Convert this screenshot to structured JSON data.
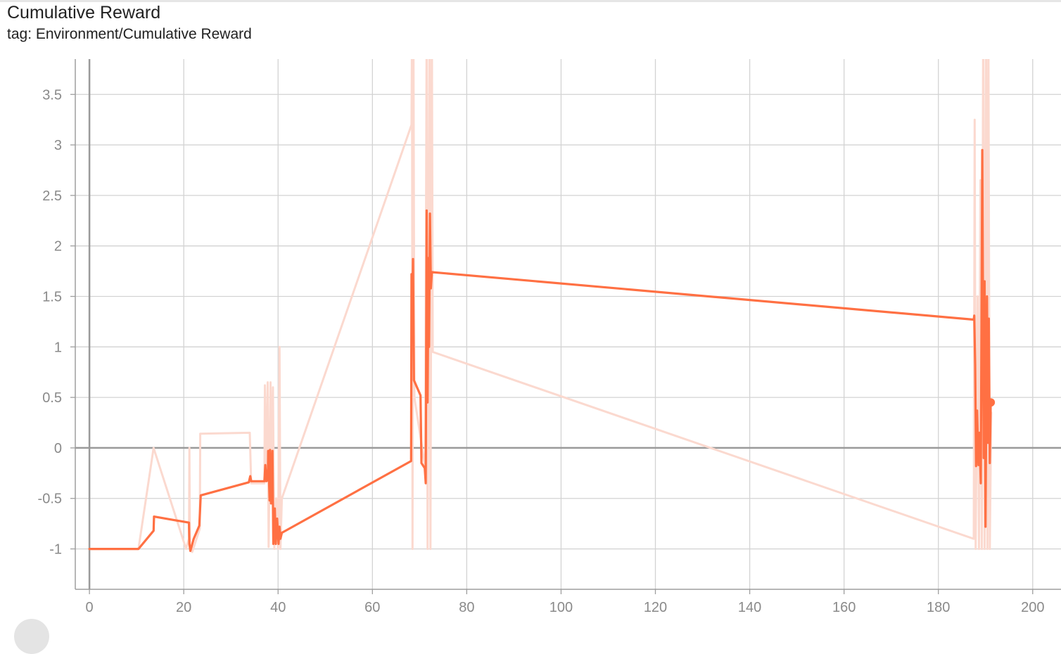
{
  "header": {
    "title": "Cumulative Reward",
    "subtitle": "tag: Environment/Cumulative Reward"
  },
  "colors": {
    "smoothed": "#ff7043",
    "raw": "#fbd9cf",
    "grid": "#d3d3d3",
    "axis": "#9e9e9e",
    "zero_line": "#9a9a9a"
  },
  "chart_data": {
    "type": "line",
    "title": "Cumulative Reward",
    "subtitle": "tag: Environment/Cumulative Reward",
    "xlim": [
      -3,
      206
    ],
    "ylim": [
      -1.4,
      3.85
    ],
    "xticks": [
      0,
      20,
      40,
      60,
      80,
      100,
      120,
      140,
      160,
      180,
      200
    ],
    "yticks": [
      -1,
      -0.5,
      0,
      0.5,
      1,
      1.5,
      2,
      2.5,
      3,
      3.5
    ],
    "xtick_labels": [
      "0",
      "20",
      "40",
      "60",
      "80",
      "100",
      "120",
      "140",
      "160",
      "180",
      "200"
    ],
    "ytick_labels": [
      "-1",
      "-0.5",
      "0",
      "0.5",
      "1",
      "1.5",
      "2",
      "2.5",
      "3",
      "3.5"
    ],
    "grid": true,
    "series": [
      {
        "role": "raw",
        "points": [
          [
            0,
            -1
          ],
          [
            10.4,
            -1
          ],
          [
            13.6,
            0
          ],
          [
            20.5,
            -1
          ],
          [
            21.1,
            -0.9
          ],
          [
            21.2,
            0
          ],
          [
            21.3,
            -1
          ],
          [
            21.8,
            -1.03
          ],
          [
            23.4,
            -0.8
          ],
          [
            23.5,
            0.14
          ],
          [
            34,
            0.15
          ],
          [
            34.3,
            -0.35
          ],
          [
            37.1,
            -0.35
          ],
          [
            37.2,
            0.62
          ],
          [
            37.3,
            -0.3
          ],
          [
            37.8,
            0.65
          ],
          [
            38,
            -0.98
          ],
          [
            38.4,
            0.65
          ],
          [
            38.6,
            -0.3
          ],
          [
            38.9,
            0.6
          ],
          [
            39.2,
            -1
          ],
          [
            39.6,
            -0.5
          ],
          [
            40,
            -1
          ],
          [
            40.3,
            1
          ],
          [
            40.5,
            -1
          ],
          [
            40.8,
            -0.5
          ],
          [
            68.3,
            3.2
          ],
          [
            68.4,
            4.2
          ],
          [
            68.5,
            -1
          ],
          [
            68.7,
            4.2
          ],
          [
            68.9,
            0.5
          ],
          [
            71.2,
            -0.2
          ],
          [
            71.5,
            4.2
          ],
          [
            71.7,
            -1
          ],
          [
            72.1,
            4.2
          ],
          [
            72.3,
            -1
          ],
          [
            72.6,
            4.2
          ],
          [
            72.8,
            0.95
          ],
          [
            187.5,
            -0.9
          ],
          [
            187.7,
            3.25
          ],
          [
            187.9,
            -1
          ],
          [
            188.3,
            1.5
          ],
          [
            188.6,
            -1
          ],
          [
            188.9,
            2.65
          ],
          [
            189.2,
            -1
          ],
          [
            189.5,
            4.2
          ],
          [
            189.8,
            -1
          ],
          [
            190.1,
            4.2
          ],
          [
            190.4,
            -1
          ],
          [
            190.6,
            4.2
          ],
          [
            190.9,
            -1
          ],
          [
            191.2,
            0.35
          ]
        ]
      },
      {
        "role": "smoothed",
        "points": [
          [
            0,
            -1
          ],
          [
            10.4,
            -1
          ],
          [
            13.6,
            -0.82
          ],
          [
            13.7,
            -0.68
          ],
          [
            21.1,
            -0.74
          ],
          [
            21.2,
            -0.95
          ],
          [
            21.4,
            -1.02
          ],
          [
            22.1,
            -0.9
          ],
          [
            23.3,
            -0.77
          ],
          [
            23.6,
            -0.47
          ],
          [
            33.8,
            -0.34
          ],
          [
            34.1,
            -0.28
          ],
          [
            34.3,
            -0.33
          ],
          [
            37.1,
            -0.33
          ],
          [
            37.3,
            -0.17
          ],
          [
            37.5,
            -0.33
          ],
          [
            37.8,
            -0.32
          ],
          [
            37.9,
            -0.03
          ],
          [
            38.2,
            -0.52
          ],
          [
            38.3,
            -0.02
          ],
          [
            38.5,
            -0.55
          ],
          [
            38.8,
            -0.03
          ],
          [
            39,
            -0.95
          ],
          [
            39.3,
            -0.6
          ],
          [
            39.5,
            -0.95
          ],
          [
            39.8,
            -0.7
          ],
          [
            40.1,
            -0.95
          ],
          [
            40.3,
            -0.78
          ],
          [
            40.5,
            -0.9
          ],
          [
            40.8,
            -0.84
          ],
          [
            68.2,
            -0.13
          ],
          [
            68.3,
            1.72
          ],
          [
            68.5,
            1.5
          ],
          [
            68.6,
            1.87
          ],
          [
            68.8,
            0.67
          ],
          [
            70.2,
            0.52
          ],
          [
            70.4,
            -0.15
          ],
          [
            71.1,
            -0.2
          ],
          [
            71.3,
            -0.35
          ],
          [
            71.5,
            2.35
          ],
          [
            71.7,
            0.45
          ],
          [
            71.9,
            1.88
          ],
          [
            72,
            1.0
          ],
          [
            72.2,
            2.32
          ],
          [
            72.4,
            1.58
          ],
          [
            72.6,
            1.74
          ],
          [
            187.5,
            1.27
          ],
          [
            187.6,
            1.31
          ],
          [
            187.8,
            0.82
          ],
          [
            188,
            -0.18
          ],
          [
            188.2,
            0.37
          ],
          [
            188.5,
            -0.17
          ],
          [
            188.7,
            0.15
          ],
          [
            189,
            -0.35
          ],
          [
            189.3,
            2.95
          ],
          [
            189.6,
            -0.1
          ],
          [
            189.8,
            1.65
          ],
          [
            190,
            -0.78
          ],
          [
            190.3,
            1.5
          ],
          [
            190.5,
            0.05
          ],
          [
            190.7,
            1.28
          ],
          [
            190.9,
            -0.15
          ],
          [
            191.1,
            0.45
          ]
        ]
      }
    ]
  }
}
